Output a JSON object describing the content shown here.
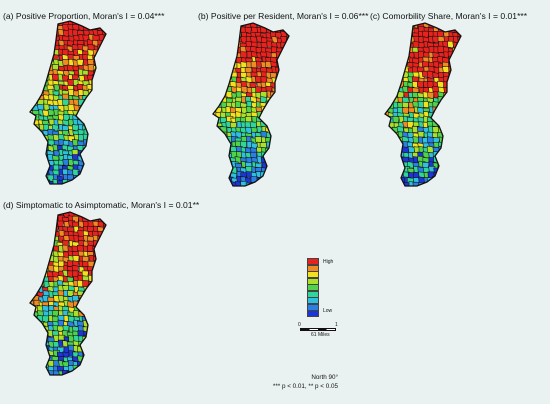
{
  "panels": [
    {
      "id": "a",
      "title": "(a) Positive Proportion, Moran's I = 0.04***"
    },
    {
      "id": "b",
      "title": "(b) Positive per Resident, Moran's I = 0.06***"
    },
    {
      "id": "c",
      "title": "(c) Comorbility Share, Moran's I = 0.01***"
    },
    {
      "id": "d",
      "title": "(d) Simptomatic to Asimptomatic, Moran's I = 0.01**"
    }
  ],
  "legend": {
    "high_label": "High",
    "low_label": "Low",
    "colors": [
      "#e8231e",
      "#f08a22",
      "#f2e11f",
      "#a9e02b",
      "#4fd34a",
      "#2fd59a",
      "#2fbfe0",
      "#2a7fe2",
      "#1d35d6"
    ]
  },
  "scale": {
    "start": "0",
    "end": "1",
    "unit": "61 Miles"
  },
  "north": "North 90°",
  "significance_note": "*** p < 0.01, ** p < 0.05",
  "colors": {
    "background": "#e9f1f1",
    "boundary": "#111111"
  }
}
